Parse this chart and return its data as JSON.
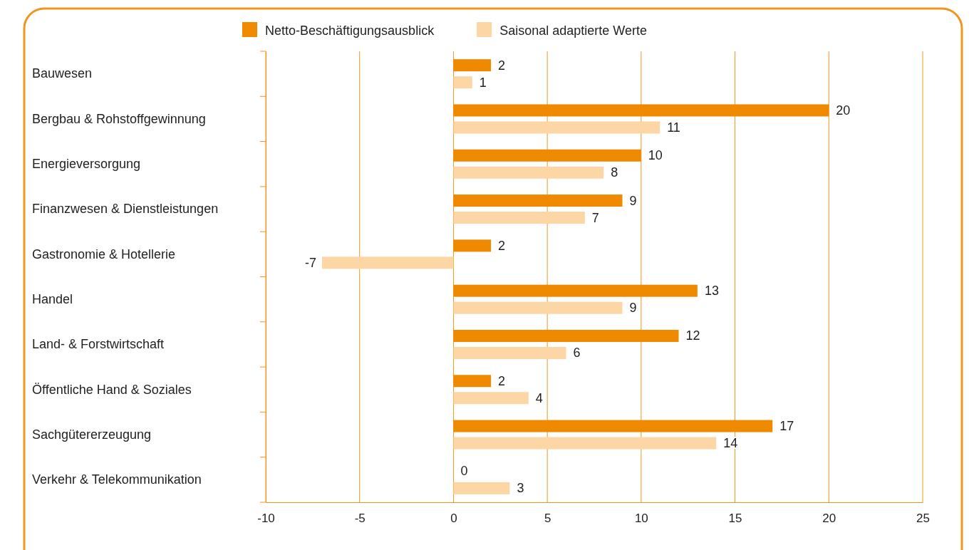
{
  "chart_data": {
    "type": "bar",
    "orientation": "horizontal",
    "categories": [
      "Bauwesen",
      "Bergbau & Rohstoffgewinnung",
      "Energieversorgung",
      "Finanzwesen & Dienstleistungen",
      "Gastronomie & Hotellerie",
      "Handel",
      "Land- & Forstwirtschaft",
      "Öffentliche Hand & Soziales",
      "Sachgütererzeugung",
      "Verkehr & Telekommunikation"
    ],
    "series": [
      {
        "name": "Netto-Beschäftigungsausblick",
        "color": "#ef8a00",
        "values": [
          2,
          20,
          10,
          9,
          2,
          13,
          12,
          2,
          17,
          0
        ]
      },
      {
        "name": "Saisonal adaptierte Werte",
        "color": "#fdd6a6",
        "values": [
          1,
          11,
          8,
          7,
          -7,
          9,
          6,
          4,
          14,
          3
        ]
      }
    ],
    "xlim": [
      -10,
      25
    ],
    "xticks": [
      -10,
      -5,
      0,
      5,
      10,
      15,
      20,
      25
    ],
    "grid": "x",
    "legend": "top",
    "data_labels": true
  }
}
